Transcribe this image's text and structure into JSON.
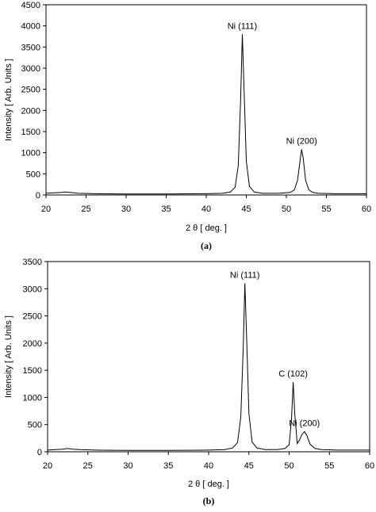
{
  "chart_data": [
    {
      "type": "line",
      "caption": "(a)",
      "xlabel": "2 θ [ deg. ]",
      "ylabel": "Intensity [ Arb. Units ]",
      "xlim": [
        20,
        60
      ],
      "ylim": [
        0,
        4500
      ],
      "xticks": [
        20,
        25,
        30,
        35,
        40,
        45,
        50,
        55,
        60
      ],
      "yticks": [
        0,
        500,
        1000,
        1500,
        2000,
        2500,
        3000,
        3500,
        4000,
        4500
      ],
      "grid": false,
      "annotations": [
        {
          "text": "Ni (111)",
          "x": 44.5,
          "y": 3800
        },
        {
          "text": "Ni (200)",
          "x": 51.9,
          "y": 1080
        }
      ],
      "series": [
        {
          "x": [
            20,
            21,
            22,
            22.5,
            23,
            24,
            26,
            30,
            35,
            40,
            42,
            43,
            43.6,
            44.0,
            44.3,
            44.5,
            44.7,
            45.0,
            45.4,
            46,
            47,
            49,
            50.5,
            51.0,
            51.4,
            51.7,
            51.9,
            52.1,
            52.4,
            52.8,
            53.3,
            54,
            56,
            60
          ],
          "y": [
            40,
            50,
            60,
            70,
            60,
            40,
            30,
            25,
            25,
            30,
            40,
            70,
            180,
            700,
            2300,
            3800,
            2600,
            800,
            200,
            70,
            40,
            40,
            60,
            120,
            350,
            800,
            1080,
            880,
            350,
            120,
            60,
            40,
            30,
            30
          ]
        }
      ]
    },
    {
      "type": "line",
      "caption": "(b)",
      "xlabel": "2 θ [ deg. ]",
      "ylabel": "Intensity [ Arb. Units ]",
      "xlim": [
        20,
        60
      ],
      "ylim": [
        0,
        3500
      ],
      "xticks": [
        20,
        25,
        30,
        35,
        40,
        45,
        50,
        55,
        60
      ],
      "yticks": [
        0,
        500,
        1000,
        1500,
        2000,
        2500,
        3000,
        3500
      ],
      "grid": false,
      "annotations": [
        {
          "text": "Ni (111)",
          "x": 44.5,
          "y": 3100
        },
        {
          "text": "C (102)",
          "x": 50.5,
          "y": 1280
        },
        {
          "text": "Ni (200)",
          "x": 51.9,
          "y": 370
        }
      ],
      "series": [
        {
          "x": [
            20,
            21,
            22,
            22.5,
            23,
            24,
            26,
            30,
            35,
            40,
            42,
            43,
            43.6,
            44.0,
            44.3,
            44.5,
            44.7,
            45.0,
            45.4,
            46,
            47,
            48.5,
            49.5,
            50.0,
            50.3,
            50.5,
            50.7,
            51.0,
            51.3,
            51.6,
            51.9,
            52.2,
            52.6,
            53.2,
            54,
            56,
            60
          ],
          "y": [
            30,
            40,
            50,
            60,
            50,
            40,
            30,
            25,
            25,
            30,
            40,
            70,
            170,
            650,
            1900,
            3100,
            2200,
            700,
            180,
            70,
            40,
            40,
            60,
            130,
            600,
            1280,
            700,
            150,
            220,
            320,
            370,
            300,
            140,
            60,
            40,
            30,
            30
          ]
        }
      ]
    }
  ]
}
